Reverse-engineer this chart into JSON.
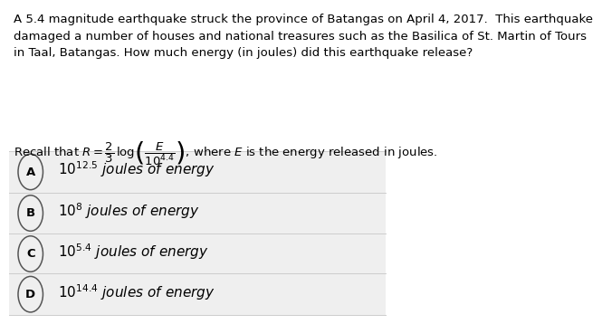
{
  "bg_color": "#f0f0f0",
  "white": "#ffffff",
  "text_color": "#000000",
  "paragraph": "A 5.4 magnitude earthquake struck the province of Batangas on April 4, 2017.  This earthquake\ndamaged a number of houses and national treasures such as the Basilica of St. Martin of Tours\nin Taal, Batangas. How much energy (in joules) did this earthquake release?",
  "options": [
    {
      "label": "A",
      "exp": "12.5"
    },
    {
      "label": "B",
      "exp": "8"
    },
    {
      "label": "C",
      "exp": "5.4"
    },
    {
      "label": "D",
      "exp": "14.4"
    }
  ],
  "option_bg": "#efefef",
  "option_border": "#cccccc",
  "circle_edge": "#555555",
  "circle_face": "#efefef",
  "font_size_para": 9.5,
  "font_size_recall": 9.5,
  "font_size_option": 11.0,
  "font_size_label": 9.5
}
